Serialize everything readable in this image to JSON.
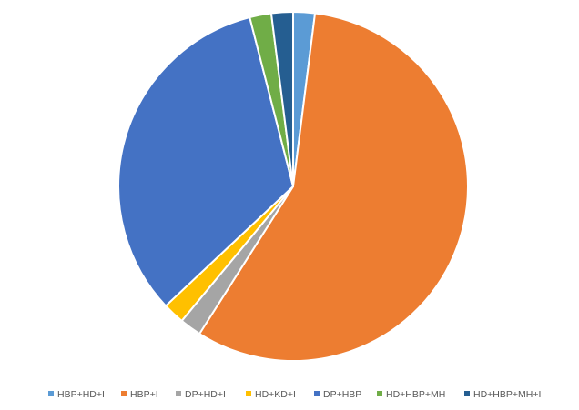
{
  "chart_data": {
    "type": "pie",
    "title": "",
    "legend_position": "bottom",
    "start_angle_deg": 0,
    "direction": "clockwise",
    "slice_border_color": "#ffffff",
    "categories": [
      "HBP+HD+I",
      "HBP+I",
      "DP+HD+I",
      "HD+KD+I",
      "DP+HBP",
      "HD+HBP+MH",
      "HD+HBP+MH+I"
    ],
    "values": [
      2,
      57,
      2,
      2,
      33,
      2,
      2
    ],
    "colors": [
      "#5B9BD5",
      "#ED7D31",
      "#A5A5A5",
      "#FFC000",
      "#4472C4",
      "#70AD47",
      "#255E91"
    ]
  }
}
